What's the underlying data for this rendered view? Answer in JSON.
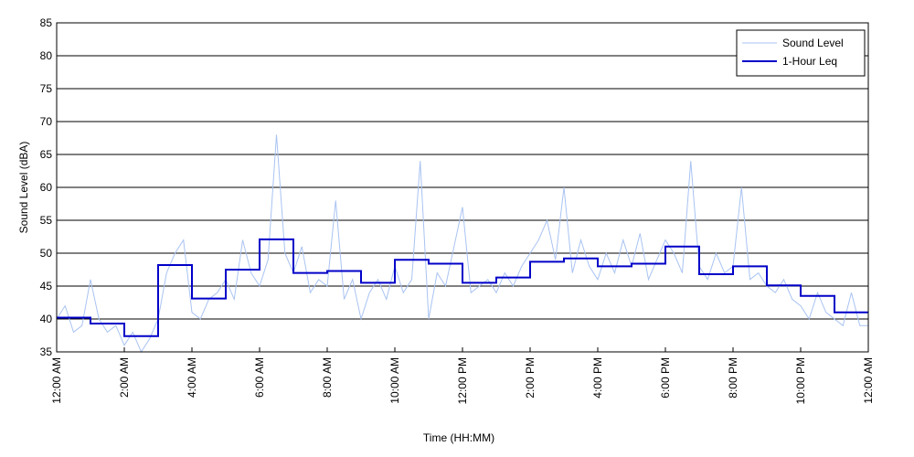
{
  "chart_data": {
    "type": "line",
    "xlabel": "Time (HH:MM)",
    "ylabel": "Sound Level (dBA)",
    "xlim": [
      0,
      24
    ],
    "ylim": [
      35,
      85
    ],
    "yticks": [
      35,
      40,
      45,
      50,
      55,
      60,
      65,
      70,
      75,
      80,
      85
    ],
    "xticks": [
      {
        "value": 0,
        "label": "12:00 AM"
      },
      {
        "value": 2,
        "label": "2:00 AM"
      },
      {
        "value": 4,
        "label": "4:00 AM"
      },
      {
        "value": 6,
        "label": "6:00 AM"
      },
      {
        "value": 8,
        "label": "8:00 AM"
      },
      {
        "value": 10,
        "label": "10:00 AM"
      },
      {
        "value": 12,
        "label": "12:00 PM"
      },
      {
        "value": 14,
        "label": "2:00 PM"
      },
      {
        "value": 16,
        "label": "4:00 PM"
      },
      {
        "value": 18,
        "label": "6:00 PM"
      },
      {
        "value": 20,
        "label": "8:00 PM"
      },
      {
        "value": 22,
        "label": "10:00 PM"
      },
      {
        "value": 24,
        "label": "12:00 AM"
      }
    ],
    "grid": true,
    "legend": "upper right",
    "series": [
      {
        "name": "Sound Level",
        "color": "#a9c3f2",
        "drawstyle": "default",
        "x": [
          0,
          0.25,
          0.5,
          0.75,
          1,
          1.25,
          1.5,
          1.75,
          2,
          2.25,
          2.5,
          2.75,
          3,
          3.25,
          3.5,
          3.75,
          4,
          4.25,
          4.5,
          4.75,
          5,
          5.25,
          5.5,
          5.75,
          6,
          6.25,
          6.5,
          6.75,
          7,
          7.25,
          7.5,
          7.75,
          8,
          8.25,
          8.5,
          8.75,
          9,
          9.25,
          9.5,
          9.75,
          10,
          10.25,
          10.5,
          10.75,
          11,
          11.25,
          11.5,
          11.75,
          12,
          12.25,
          12.5,
          12.75,
          13,
          13.25,
          13.5,
          13.75,
          14,
          14.25,
          14.5,
          14.75,
          15,
          15.25,
          15.5,
          15.75,
          16,
          16.25,
          16.5,
          16.75,
          17,
          17.25,
          17.5,
          17.75,
          18,
          18.25,
          18.5,
          18.75,
          19,
          19.25,
          19.5,
          19.75,
          20,
          20.25,
          20.5,
          20.75,
          21,
          21.25,
          21.5,
          21.75,
          22,
          22.25,
          22.5,
          22.75,
          23,
          23.25,
          23.5,
          23.75,
          24
        ],
        "values": [
          40,
          42,
          38,
          39,
          46,
          40,
          38,
          39,
          36,
          38,
          35,
          37,
          40,
          47,
          50,
          52,
          41,
          40,
          43,
          44,
          46,
          43,
          52,
          47,
          45,
          49,
          68,
          50,
          47,
          51,
          44,
          46,
          45,
          58,
          43,
          46,
          40,
          44,
          46,
          43,
          48,
          44,
          46,
          64,
          40,
          47,
          45,
          51,
          57,
          44,
          45,
          46,
          44,
          47,
          45,
          48,
          50,
          52,
          55,
          49,
          60,
          47,
          52,
          48,
          46,
          50,
          47,
          52,
          48,
          53,
          46,
          49,
          52,
          50,
          47,
          64,
          48,
          46,
          50,
          47,
          48,
          60,
          46,
          47,
          45,
          44,
          46,
          43,
          42,
          40,
          44,
          41,
          40,
          39,
          44,
          39,
          39
        ]
      },
      {
        "name": "1-Hour Leq",
        "color": "#0000c8",
        "drawstyle": "steps-post",
        "x": [
          0,
          1,
          2,
          3,
          4,
          5,
          6,
          7,
          8,
          9,
          10,
          11,
          12,
          13,
          14,
          15,
          16,
          17,
          18,
          19,
          20,
          21,
          22,
          23
        ],
        "values": [
          40.2,
          39.3,
          37.4,
          48.2,
          43.1,
          47.5,
          52.1,
          47.0,
          47.3,
          45.5,
          49.0,
          48.4,
          45.5,
          46.3,
          48.7,
          49.2,
          48.0,
          48.4,
          51.0,
          46.8,
          48.0,
          45.1,
          43.5,
          41.0
        ]
      }
    ]
  }
}
